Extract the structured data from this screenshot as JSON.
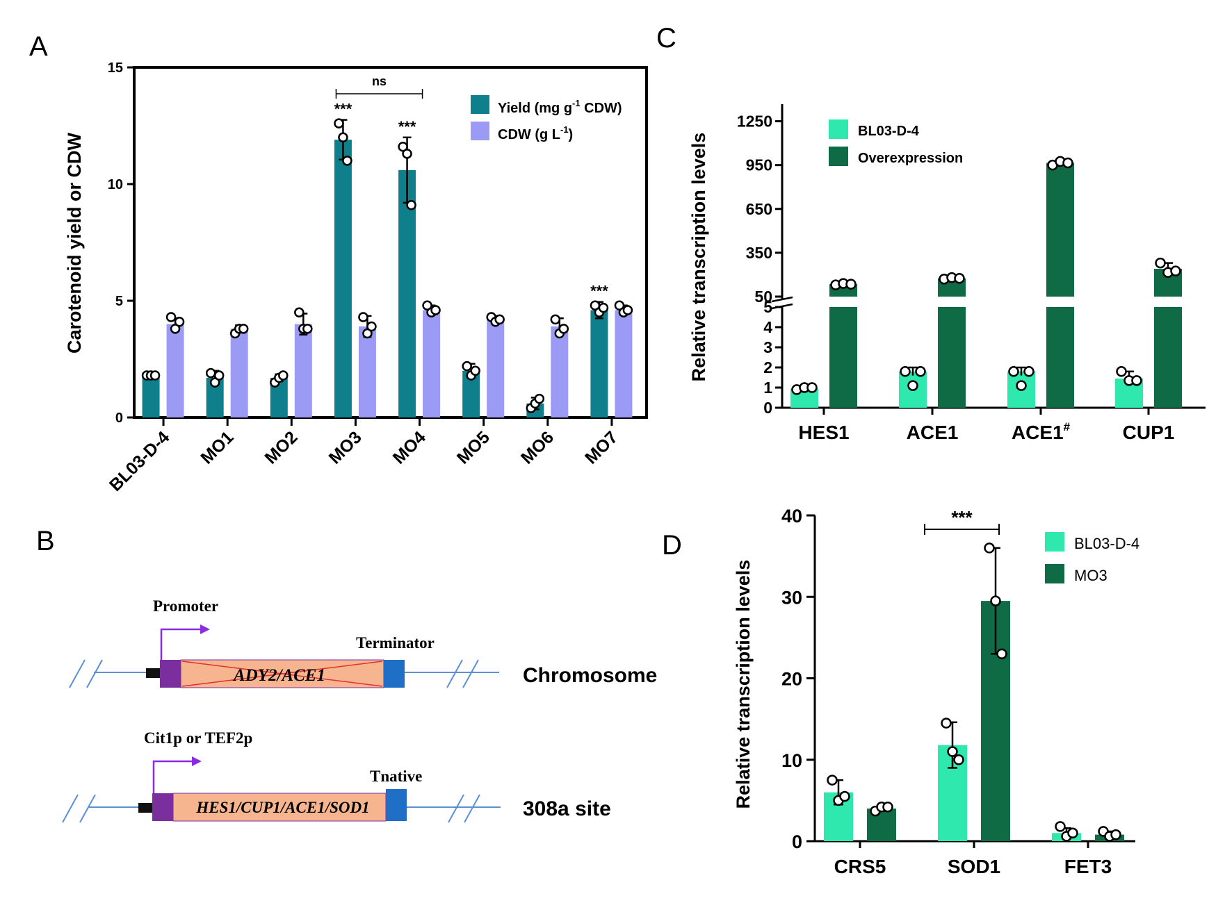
{
  "panels": {
    "A": {
      "letter": "A"
    },
    "B": {
      "letter": "B",
      "construct1": {
        "promoter_label": "Promoter",
        "terminator_label": "Terminator",
        "gene_label": "ADY2/ACE1",
        "site_label": "Chromosome"
      },
      "construct2": {
        "promoter_label": "Cit1p or TEF2p",
        "terminator_label": "Tnative",
        "gene_label": "HES1/CUP1/ACE1/SOD1",
        "site_label": "308a site"
      }
    },
    "C": {
      "letter": "C"
    },
    "D": {
      "letter": "D"
    }
  },
  "colors": {
    "yield": "#0f7f8c",
    "cdw": "#9b9bf5",
    "light_green": "#2ee8ae",
    "dark_green": "#0e6b45",
    "promoter": "#7b2f9f",
    "gene_box": "#f6b58e",
    "terminator": "#1f6fc6",
    "line": "#5b8fd6"
  },
  "chart_data": [
    {
      "id": "A",
      "type": "bar",
      "ylabel": "Carotenoid yield or CDW",
      "ylim": [
        0,
        15
      ],
      "yticks": [
        0,
        5,
        10,
        15
      ],
      "categories": [
        "BL03-D-4",
        "MO1",
        "MO2",
        "MO3",
        "MO4",
        "MO5",
        "MO6",
        "MO7"
      ],
      "series": [
        {
          "name": "Yield (mg g",
          "name_sup": "-1",
          "name_tail": " CDW)",
          "color_key": "yield",
          "values": [
            1.8,
            1.7,
            1.7,
            11.9,
            10.6,
            2.0,
            0.6,
            4.6
          ],
          "err": [
            0.05,
            0.3,
            0.15,
            0.85,
            1.4,
            0.3,
            0.25,
            0.35
          ],
          "points": [
            [
              1.8,
              1.8,
              1.8
            ],
            [
              1.9,
              1.5,
              1.8
            ],
            [
              1.5,
              1.7,
              1.8
            ],
            [
              12.6,
              12.0,
              11.0
            ],
            [
              11.6,
              11.3,
              9.1
            ],
            [
              2.2,
              1.8,
              2.0
            ],
            [
              0.4,
              0.6,
              0.8
            ],
            [
              4.8,
              4.5,
              4.7
            ]
          ]
        },
        {
          "name": "CDW (g L",
          "name_sup": "-1",
          "name_tail": ")",
          "color_key": "cdw",
          "values": [
            4.0,
            3.8,
            4.0,
            3.9,
            4.6,
            4.2,
            3.9,
            4.6
          ],
          "err": [
            0.25,
            0.15,
            0.45,
            0.45,
            0.2,
            0.15,
            0.35,
            0.2
          ],
          "points": [
            [
              4.3,
              3.8,
              4.1
            ],
            [
              3.6,
              3.8,
              3.8
            ],
            [
              4.5,
              3.8,
              3.8
            ],
            [
              4.3,
              3.6,
              3.9
            ],
            [
              4.8,
              4.5,
              4.6
            ],
            [
              4.3,
              4.1,
              4.2
            ],
            [
              4.2,
              3.6,
              3.8
            ],
            [
              4.8,
              4.5,
              4.6
            ]
          ]
        }
      ],
      "annotations": {
        "sig_MO3": "***",
        "sig_MO4": "***",
        "sig_MO7": "***",
        "bracket_label": "ns"
      }
    },
    {
      "id": "C",
      "type": "bar",
      "ylabel": "Relative transcription levels",
      "broken_axis": true,
      "lower_ylim": [
        0,
        5
      ],
      "lower_yticks": [
        0,
        1,
        2,
        3,
        4,
        5
      ],
      "upper_ylim": [
        50,
        1400
      ],
      "upper_yticks": [
        50,
        350,
        650,
        950,
        1250
      ],
      "categories": [
        "HES1",
        "ACE1",
        "ACE1",
        "CUP1"
      ],
      "category_sup": [
        "",
        "",
        "#",
        ""
      ],
      "series": [
        {
          "name": "BL03-D-4",
          "color_key": "light_green",
          "values": [
            0.95,
            1.8,
            1.8,
            1.45
          ],
          "err": [
            0.1,
            0.2,
            0.2,
            0.35
          ],
          "points": [
            [
              0.9,
              1.0,
              1.0
            ],
            [
              1.8,
              1.1,
              1.8
            ],
            [
              1.8,
              1.1,
              1.8
            ],
            [
              1.8,
              1.35,
              1.35
            ]
          ]
        },
        {
          "name": "Overexpression",
          "color_key": "dark_green",
          "values": [
            135,
            175,
            965,
            240
          ],
          "err": [
            15,
            15,
            20,
            40
          ],
          "points": [
            [
              130,
              140,
              135
            ],
            [
              170,
              180,
              175
            ],
            [
              950,
              975,
              965
            ],
            [
              280,
              215,
              225
            ]
          ]
        }
      ]
    },
    {
      "id": "D",
      "type": "bar",
      "ylabel": "Relative transcription levels",
      "ylim": [
        0,
        40
      ],
      "yticks": [
        0,
        10,
        20,
        30,
        40
      ],
      "categories": [
        "CRS5",
        "SOD1",
        "FET3"
      ],
      "series": [
        {
          "name": "BL03-D-4",
          "color_key": "light_green",
          "values": [
            6.0,
            11.8,
            1.0
          ],
          "err": [
            1.5,
            2.8,
            0.6
          ],
          "points": [
            [
              7.5,
              5.0,
              5.5
            ],
            [
              14.5,
              11.0,
              10.0
            ],
            [
              1.8,
              0.6,
              1.0
            ]
          ]
        },
        {
          "name": "MO3",
          "color_key": "dark_green",
          "values": [
            4.0,
            29.5,
            0.8
          ],
          "err": [
            0.3,
            6.5,
            0.4
          ],
          "points": [
            [
              3.7,
              4.2,
              4.2
            ],
            [
              36.0,
              29.5,
              23.0
            ],
            [
              1.2,
              0.6,
              0.8
            ]
          ]
        }
      ],
      "annotations": {
        "bracket_label": "***"
      }
    }
  ]
}
